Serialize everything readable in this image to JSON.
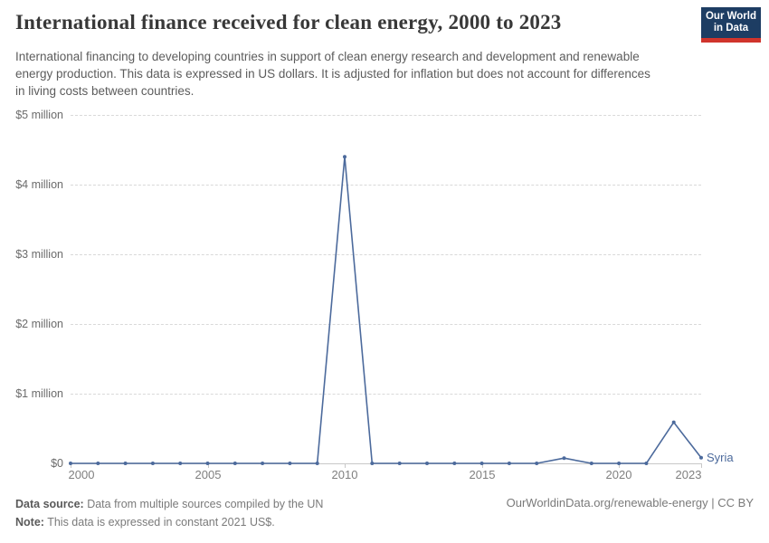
{
  "header": {
    "title": "International finance received for clean energy, 2000 to 2023",
    "subtitle": "International financing to developing countries in support of clean energy research and development and renewable energy production. This data is expressed in US dollars. It is adjusted for inflation but does not account for differences in living costs between countries.",
    "logo_line1": "Our World",
    "logo_line2": "in Data"
  },
  "colors": {
    "line": "#4c6a9c",
    "logo_background": "#1d3d63",
    "logo_red_bar": "#d0342c",
    "gridline": "#d9d9d9"
  },
  "chart_data": {
    "type": "line",
    "title": "International finance received for clean energy, 2000 to 2023",
    "entity": "Syria",
    "unit": "constant 2021 US$",
    "grid": true,
    "legend_position": "end-of-line",
    "ylim": [
      0,
      5000000
    ],
    "xlim": [
      2000,
      2023
    ],
    "x": [
      2000,
      2001,
      2002,
      2003,
      2004,
      2005,
      2006,
      2007,
      2008,
      2009,
      2010,
      2011,
      2012,
      2013,
      2014,
      2015,
      2016,
      2017,
      2018,
      2019,
      2020,
      2021,
      2022,
      2023
    ],
    "series": [
      {
        "name": "Syria",
        "color": "#4c6a9c",
        "values": [
          0,
          0,
          0,
          0,
          0,
          0,
          0,
          0,
          0,
          0,
          4400000,
          0,
          0,
          0,
          0,
          0,
          0,
          0,
          75000,
          0,
          0,
          0,
          590000,
          80000
        ]
      }
    ],
    "y_ticks": [
      {
        "value": 0,
        "label": "$0"
      },
      {
        "value": 1000000,
        "label": "$1 million"
      },
      {
        "value": 2000000,
        "label": "$2 million"
      },
      {
        "value": 3000000,
        "label": "$3 million"
      },
      {
        "value": 4000000,
        "label": "$4 million"
      },
      {
        "value": 5000000,
        "label": "$5 million"
      }
    ],
    "x_ticks": [
      {
        "value": 2000,
        "label": "2000"
      },
      {
        "value": 2005,
        "label": "2005"
      },
      {
        "value": 2010,
        "label": "2010"
      },
      {
        "value": 2015,
        "label": "2015"
      },
      {
        "value": 2020,
        "label": "2020"
      },
      {
        "value": 2023,
        "label": "2023"
      }
    ]
  },
  "footer": {
    "source_label": "Data source:",
    "source_text": " Data from multiple sources compiled by the UN",
    "note_label": "Note:",
    "note_text": " This data is expressed in constant 2021 US$.",
    "rights": "OurWorldinData.org/renewable-energy | CC BY"
  }
}
